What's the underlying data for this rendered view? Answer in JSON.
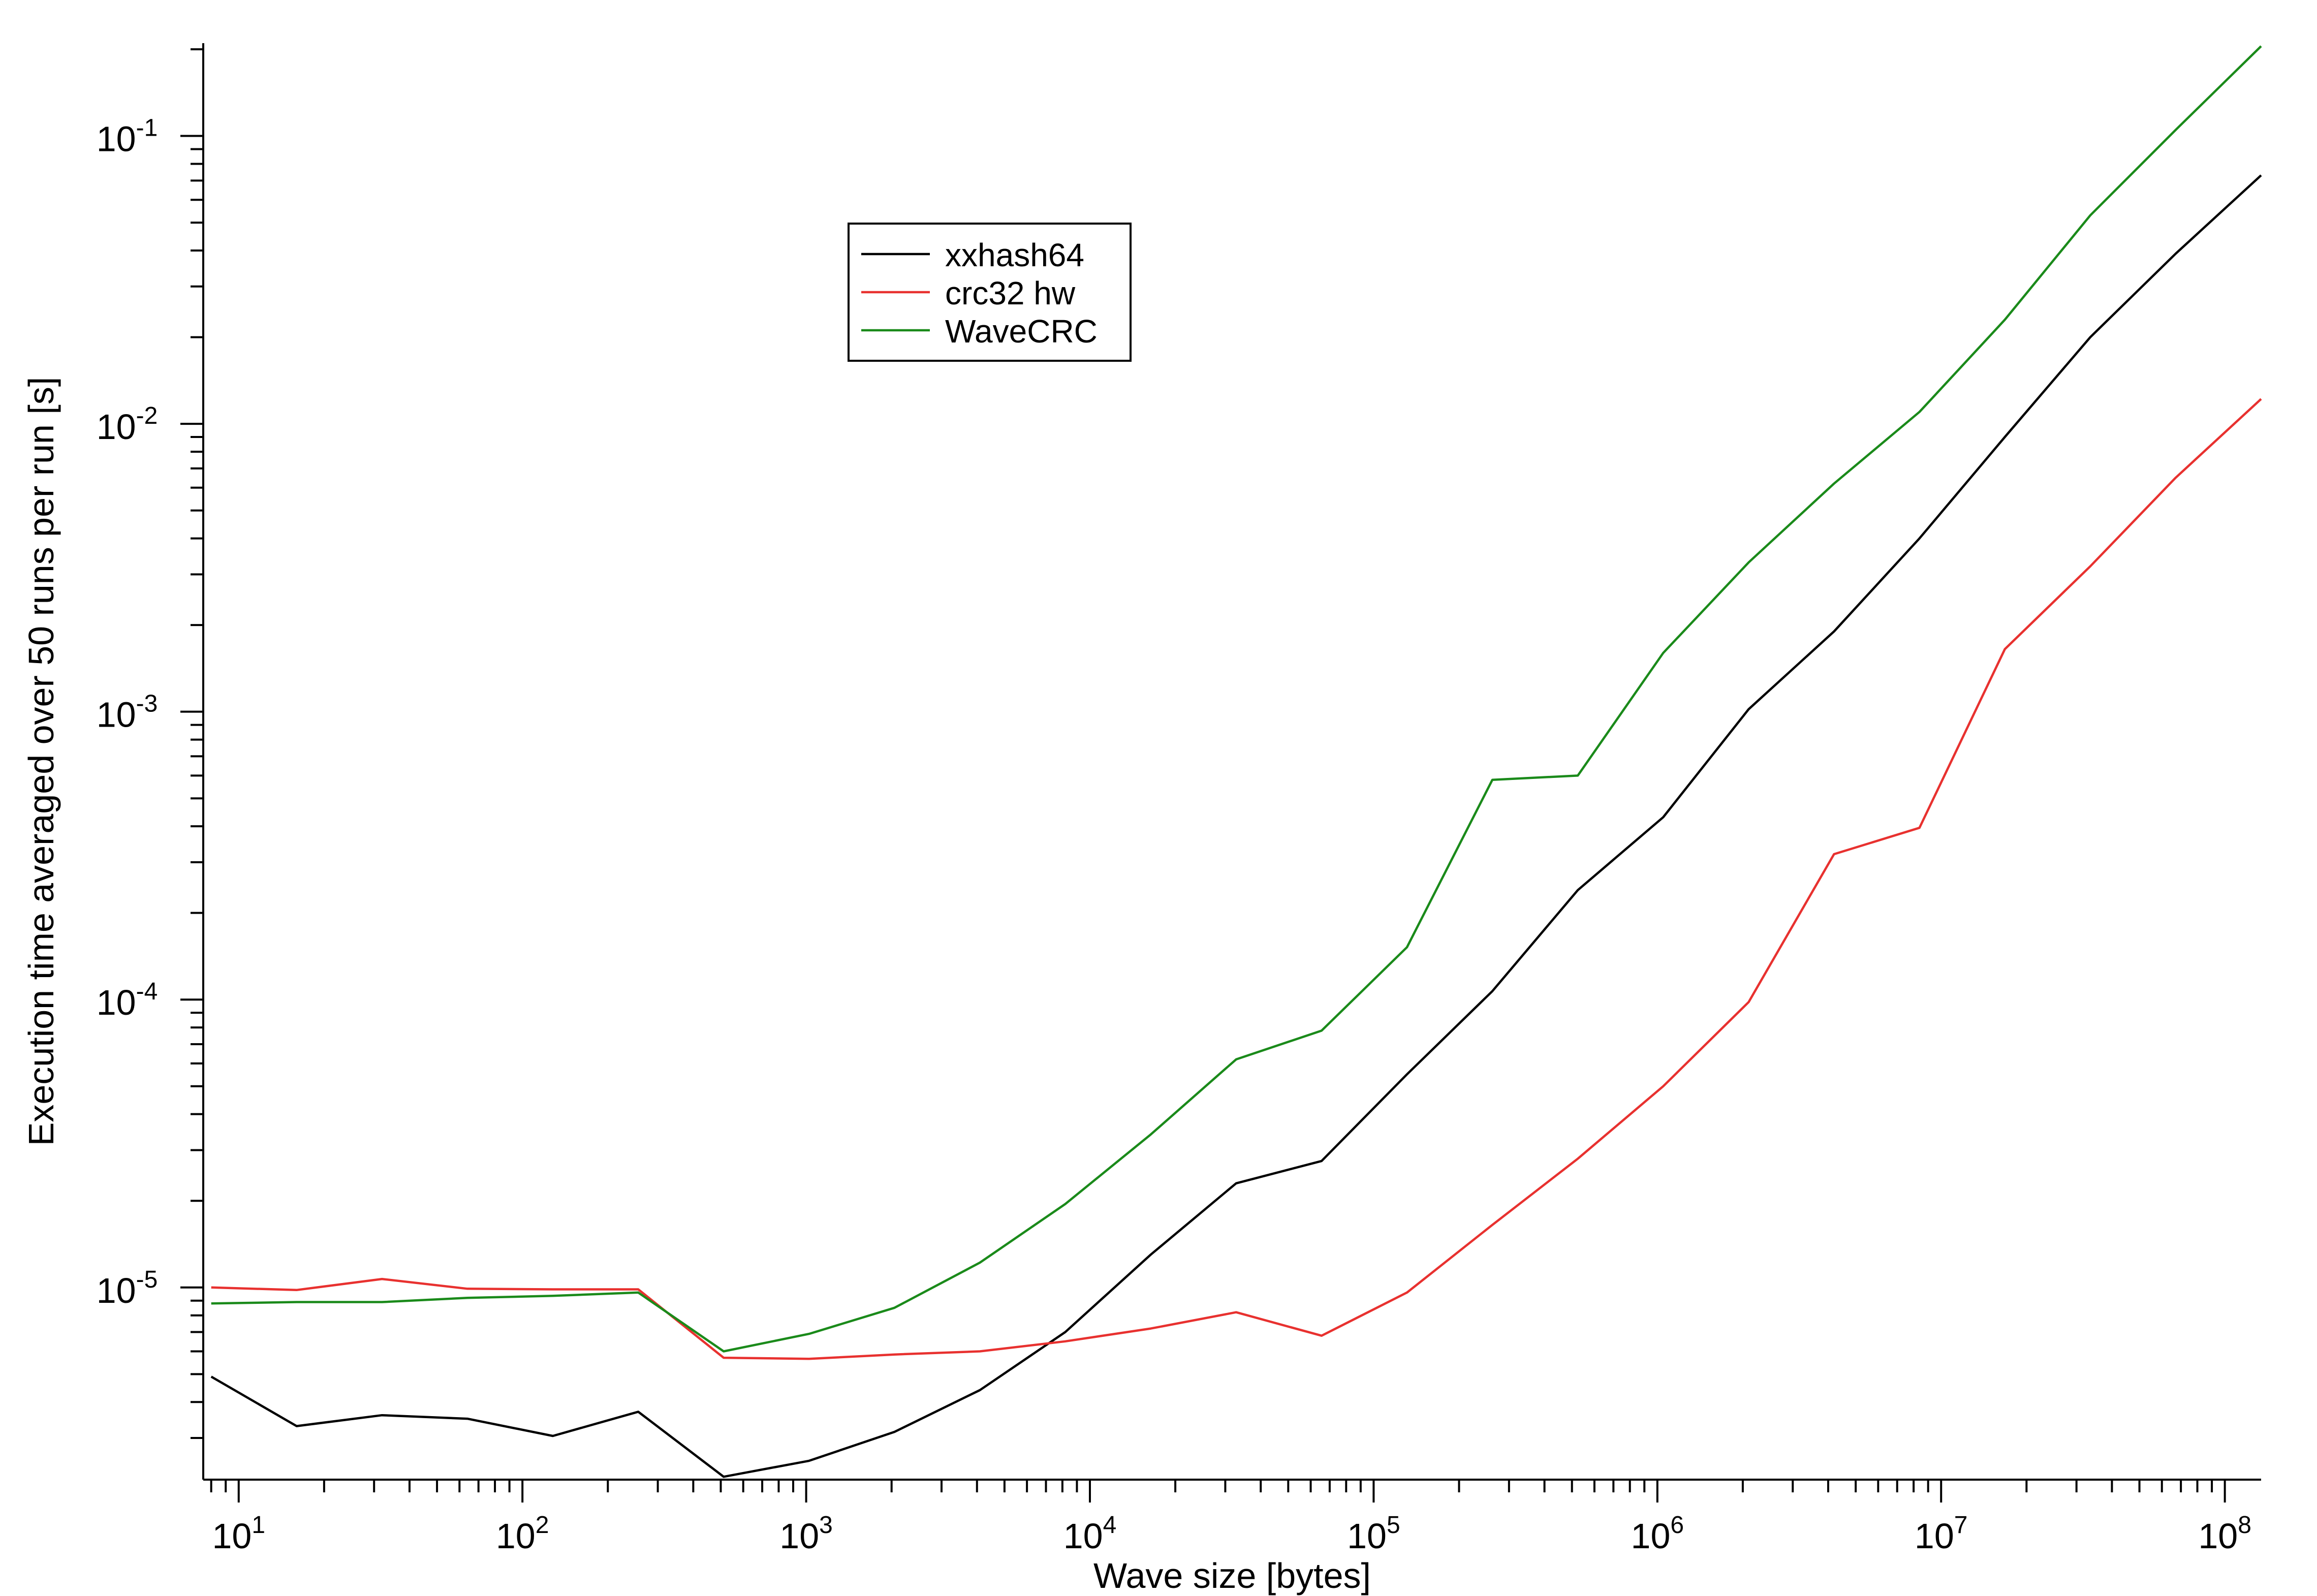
{
  "chart_data": {
    "type": "line",
    "title": "",
    "xlabel": "Wave size [bytes]",
    "ylabel": "Execution time averaged over 50 runs per run [s]",
    "xscale": "log",
    "yscale": "log",
    "xlim": [
      7.5,
      134217728
    ],
    "ylim": [
      2.15e-06,
      0.21
    ],
    "grid": false,
    "legend_position": "top-center",
    "x": [
      8,
      16,
      32,
      64,
      128,
      256,
      512,
      1024,
      2048,
      4096,
      8192,
      16384,
      32768,
      65536,
      131072,
      262144,
      524288,
      1048576,
      2097152,
      4194304,
      8388608,
      16777216,
      33554432,
      67108864,
      134217728
    ],
    "series": [
      {
        "name": "xxhash64",
        "color": "#000000",
        "values": [
          4.9e-06,
          3.3e-06,
          3.6e-06,
          3.5e-06,
          3.05e-06,
          3.7e-06,
          2.2e-06,
          2.5e-06,
          3.15e-06,
          4.4e-06,
          7e-06,
          1.3e-05,
          2.3e-05,
          2.75e-05,
          5.5e-05,
          0.000107,
          0.00024,
          0.00043,
          0.00102,
          0.0019,
          0.004,
          0.009,
          0.02,
          0.039,
          0.073
        ]
      },
      {
        "name": "crc32 hw",
        "color": "#e8312f",
        "values": [
          1e-05,
          9.8e-06,
          1.07e-05,
          9.9e-06,
          9.85e-06,
          9.85e-06,
          5.7e-06,
          5.65e-06,
          5.85e-06,
          6e-06,
          6.5e-06,
          7.2e-06,
          8.2e-06,
          6.8e-06,
          9.6e-06,
          1.65e-05,
          2.8e-05,
          5e-05,
          9.8e-05,
          0.00032,
          0.000395,
          0.00165,
          0.0032,
          0.0065,
          0.0122
        ]
      },
      {
        "name": "WaveCRC",
        "color": "#1a8a1a",
        "values": [
          8.8e-06,
          8.9e-06,
          8.9e-06,
          9.2e-06,
          9.35e-06,
          9.6e-06,
          6e-06,
          6.9e-06,
          8.5e-06,
          1.22e-05,
          1.95e-05,
          3.4e-05,
          6.2e-05,
          7.8e-05,
          0.000152,
          0.00058,
          0.0006,
          0.0016,
          0.0033,
          0.0062,
          0.011,
          0.023,
          0.053,
          0.105,
          0.205
        ]
      }
    ],
    "x_tick_labels": [
      {
        "base": "10",
        "exp": "1",
        "value": 10
      },
      {
        "base": "10",
        "exp": "2",
        "value": 100
      },
      {
        "base": "10",
        "exp": "3",
        "value": 1000
      },
      {
        "base": "10",
        "exp": "4",
        "value": 10000
      },
      {
        "base": "10",
        "exp": "5",
        "value": 100000
      },
      {
        "base": "10",
        "exp": "6",
        "value": 1000000
      },
      {
        "base": "10",
        "exp": "7",
        "value": 10000000
      },
      {
        "base": "10",
        "exp": "8",
        "value": 100000000
      }
    ],
    "y_tick_labels": [
      {
        "base": "10",
        "exp": "-5",
        "value": 1e-05
      },
      {
        "base": "10",
        "exp": "-4",
        "value": 0.0001
      },
      {
        "base": "10",
        "exp": "-3",
        "value": 0.001
      },
      {
        "base": "10",
        "exp": "-2",
        "value": 0.01
      },
      {
        "base": "10",
        "exp": "-1",
        "value": 0.1
      }
    ]
  }
}
